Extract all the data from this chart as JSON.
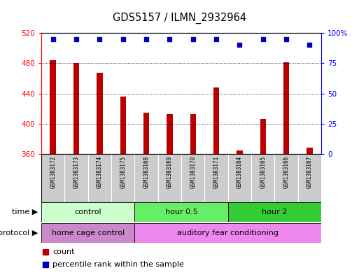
{
  "title": "GDS5157 / ILMN_2932964",
  "samples": [
    "GSM1383172",
    "GSM1383173",
    "GSM1383174",
    "GSM1383175",
    "GSM1383168",
    "GSM1383169",
    "GSM1383170",
    "GSM1383171",
    "GSM1383164",
    "GSM1383165",
    "GSM1383166",
    "GSM1383167"
  ],
  "counts": [
    484,
    480,
    467,
    436,
    415,
    413,
    413,
    448,
    365,
    406,
    481,
    368
  ],
  "percentile_ranks": [
    95,
    95,
    95,
    95,
    95,
    95,
    95,
    95,
    90,
    95,
    95,
    90
  ],
  "ylim_left": [
    360,
    520
  ],
  "ylim_right": [
    0,
    100
  ],
  "yticks_left": [
    360,
    400,
    440,
    480,
    520
  ],
  "yticks_right": [
    0,
    25,
    50,
    75,
    100
  ],
  "bar_color": "#bb0000",
  "dot_color": "#0000bb",
  "time_groups": [
    {
      "label": "control",
      "start": 0,
      "end": 4,
      "color": "#ccffcc"
    },
    {
      "label": "hour 0.5",
      "start": 4,
      "end": 8,
      "color": "#66ee66"
    },
    {
      "label": "hour 2",
      "start": 8,
      "end": 12,
      "color": "#33cc33"
    }
  ],
  "protocol_groups": [
    {
      "label": "home cage control",
      "start": 0,
      "end": 4,
      "color": "#cc88cc"
    },
    {
      "label": "auditory fear conditioning",
      "start": 4,
      "end": 12,
      "color": "#ee88ee"
    }
  ],
  "time_label": "time",
  "protocol_label": "protocol",
  "legend_count_label": "count",
  "legend_pct_label": "percentile rank within the sample",
  "background_color": "#ffffff",
  "sample_bg_color": "#cccccc",
  "border_color": "#888888"
}
